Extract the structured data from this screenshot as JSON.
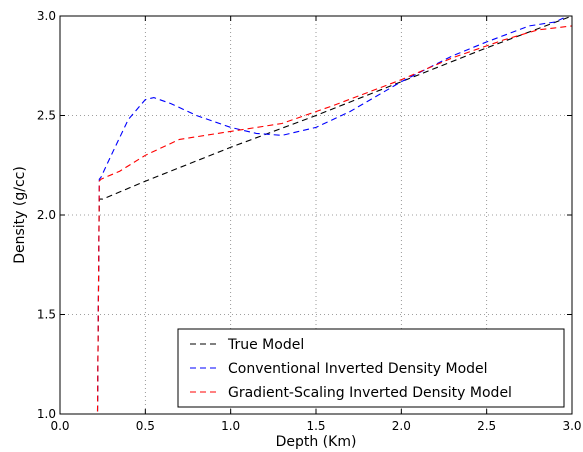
{
  "chart_data": {
    "type": "line",
    "xlabel": "Depth (Km)",
    "ylabel": "Density (g/cc)",
    "xlim": [
      0.0,
      3.0
    ],
    "ylim": [
      1.0,
      3.0
    ],
    "xticks": [
      "0.0",
      "0.5",
      "1.0",
      "1.5",
      "2.0",
      "2.5",
      "3.0"
    ],
    "yticks": [
      "1.0",
      "1.5",
      "2.0",
      "2.5",
      "3.0"
    ],
    "grid": true,
    "legend_position": "bottom-right",
    "series": [
      {
        "name": "True Model",
        "color": "#000000",
        "style": "dashed",
        "x": [
          0.0,
          0.2,
          0.22,
          0.23,
          0.25,
          0.5,
          1.0,
          1.5,
          2.0,
          2.5,
          3.0
        ],
        "y": [
          1.0,
          1.0,
          1.0,
          2.08,
          2.08,
          2.17,
          2.34,
          2.5,
          2.67,
          2.84,
          3.0
        ]
      },
      {
        "name": "Conventional Inverted Density Model",
        "color": "#0000ff",
        "style": "dashed",
        "x": [
          0.0,
          0.2,
          0.22,
          0.23,
          0.24,
          0.3,
          0.4,
          0.5,
          0.55,
          0.65,
          0.8,
          1.0,
          1.15,
          1.3,
          1.5,
          1.7,
          2.0,
          2.3,
          2.5,
          2.75,
          2.9,
          2.95
        ],
        "y": [
          1.0,
          1.0,
          1.0,
          2.18,
          2.19,
          2.3,
          2.48,
          2.58,
          2.59,
          2.56,
          2.5,
          2.44,
          2.41,
          2.4,
          2.44,
          2.52,
          2.67,
          2.8,
          2.87,
          2.95,
          2.97,
          2.99
        ]
      },
      {
        "name": "Gradient-Scaling Inverted Density Model",
        "color": "#ff0000",
        "style": "dashed",
        "x": [
          0.0,
          0.2,
          0.22,
          0.23,
          0.24,
          0.35,
          0.5,
          0.7,
          1.0,
          1.3,
          1.6,
          2.0,
          2.3,
          2.6,
          2.8,
          2.9,
          3.0
        ],
        "y": [
          1.0,
          1.0,
          1.0,
          2.17,
          2.18,
          2.22,
          2.3,
          2.38,
          2.42,
          2.46,
          2.55,
          2.68,
          2.79,
          2.88,
          2.93,
          2.94,
          2.95
        ]
      }
    ]
  }
}
